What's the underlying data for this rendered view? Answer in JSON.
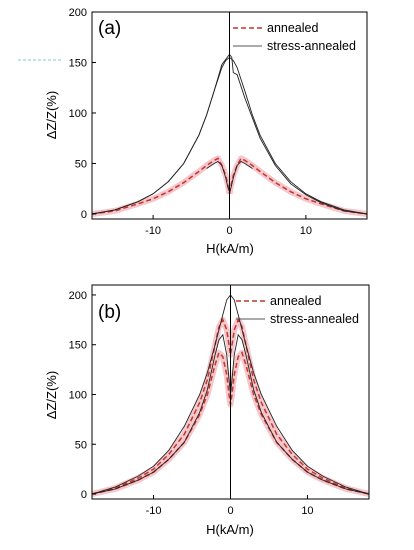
{
  "colors": {
    "annealed": "#c0392b",
    "annealed_glow": "#f6c6cc",
    "stress_annealed": "#222222",
    "axis": "#000000",
    "mark_line": "#9ad3f0"
  },
  "chart_data": [
    {
      "type": "line",
      "panel_label": "(a)",
      "xlabel": "H(kA/m)",
      "ylabel": "ΔZ/Z(%)",
      "xlim": [
        -18,
        18
      ],
      "ylim": [
        -5,
        200
      ],
      "xticks": [
        -10,
        0,
        10
      ],
      "xtick_labels": [
        "-10",
        "0",
        "10"
      ],
      "yticks": [
        0,
        50,
        100,
        150,
        200
      ],
      "ytick_labels": [
        "0",
        "50",
        "100",
        "150",
        "200"
      ],
      "grid": false,
      "legend_position": "top-right",
      "series": [
        {
          "name": "annealed",
          "style": "dashed",
          "curves": [
            {
              "x": [
                -18,
                -15,
                -12,
                -10,
                -8,
                -6,
                -4,
                -3,
                -2,
                -1.5,
                -1,
                -0.5,
                -0.2,
                0
              ],
              "y": [
                0,
                3,
                10,
                15,
                22,
                31,
                42,
                48,
                53,
                55,
                48,
                38,
                28,
                20
              ]
            },
            {
              "x": [
                0,
                0.2,
                0.5,
                1,
                1.5,
                2,
                3,
                4,
                6,
                8,
                10,
                12,
                15,
                18
              ],
              "y": [
                20,
                28,
                38,
                48,
                55,
                53,
                48,
                42,
                31,
                22,
                15,
                10,
                3,
                0
              ]
            }
          ]
        },
        {
          "name": "stress-annealed",
          "style": "solid",
          "curves": [
            {
              "x": [
                -18,
                -15,
                -12,
                -10,
                -8,
                -6,
                -4,
                -3,
                -2,
                -1,
                -0.5,
                0,
                0.5,
                1,
                2,
                3,
                4,
                6,
                8,
                10,
                12,
                15,
                18
              ],
              "y": [
                0,
                4,
                12,
                20,
                32,
                50,
                78,
                98,
                122,
                145,
                152,
                155,
                152,
                145,
                122,
                98,
                78,
                50,
                32,
                20,
                12,
                4,
                0
              ]
            },
            {
              "x": [
                -18,
                -15,
                -12,
                -10,
                -8,
                -6,
                -4,
                -3,
                -2,
                -1,
                -0.3,
                0,
                0.3,
                0.5,
                1,
                2,
                3,
                4,
                6,
                8,
                10,
                12,
                15,
                18
              ],
              "y": [
                0,
                4,
                12,
                20,
                32,
                50,
                78,
                98,
                122,
                148,
                155,
                158,
                155,
                140,
                138,
                115,
                95,
                75,
                48,
                30,
                19,
                11,
                3,
                0
              ]
            },
            {
              "x": [
                -3,
                -2,
                -1.5,
                -1,
                -0.5,
                -0.2,
                0,
                0.2,
                0.5,
                1,
                1.5,
                2,
                3
              ],
              "y": [
                45,
                50,
                52,
                48,
                36,
                26,
                22,
                26,
                36,
                48,
                52,
                50,
                45
              ]
            }
          ]
        }
      ]
    },
    {
      "type": "line",
      "panel_label": "(b)",
      "xlabel": "H(kA/m)",
      "ylabel": "ΔZ/Z(%)",
      "xlim": [
        -18,
        18
      ],
      "ylim": [
        -5,
        210
      ],
      "xticks": [
        -10,
        0,
        10
      ],
      "xtick_labels": [
        "-10",
        "0",
        "10"
      ],
      "yticks": [
        0,
        50,
        100,
        150,
        200
      ],
      "ytick_labels": [
        "0",
        "50",
        "100",
        "150",
        "200"
      ],
      "grid": false,
      "legend_position": "top-right",
      "series": [
        {
          "name": "annealed",
          "style": "dashed",
          "curves": [
            {
              "x": [
                -18,
                -15,
                -12,
                -10,
                -8,
                -6,
                -4,
                -3,
                -2,
                -1.5,
                -1,
                -0.5,
                -0.2,
                0,
                0.2,
                0.5,
                1,
                1.5,
                2,
                3,
                4,
                6,
                8,
                10,
                12,
                15,
                18
              ],
              "y": [
                0,
                5,
                14,
                22,
                35,
                52,
                80,
                100,
                130,
                142,
                138,
                120,
                100,
                90,
                100,
                120,
                138,
                142,
                130,
                100,
                80,
                52,
                35,
                22,
                14,
                5,
                0
              ]
            },
            {
              "x": [
                -18,
                -15,
                -12,
                -10,
                -8,
                -6,
                -4,
                -3,
                -2,
                -1.5,
                -1,
                -0.5,
                -0.2,
                0,
                0.2,
                0.5,
                1,
                1.5,
                2,
                3,
                4,
                6,
                8,
                10,
                12,
                15,
                18
              ],
              "y": [
                0,
                6,
                16,
                25,
                40,
                60,
                92,
                115,
                150,
                168,
                175,
                165,
                150,
                140,
                150,
                165,
                175,
                168,
                150,
                115,
                92,
                60,
                40,
                25,
                16,
                6,
                0
              ]
            }
          ]
        },
        {
          "name": "stress-annealed",
          "style": "solid",
          "curves": [
            {
              "x": [
                -18,
                -15,
                -12,
                -10,
                -8,
                -6,
                -4,
                -3,
                -2,
                -1,
                -0.5,
                0,
                0.5,
                1,
                2,
                3,
                4,
                6,
                8,
                10,
                12,
                15,
                18
              ],
              "y": [
                0,
                7,
                18,
                28,
                44,
                68,
                100,
                122,
                150,
                180,
                195,
                200,
                195,
                180,
                150,
                122,
                100,
                68,
                44,
                28,
                18,
                7,
                0
              ]
            },
            {
              "x": [
                -18,
                -15,
                -12,
                -10,
                -8,
                -6,
                -4,
                -3,
                -2,
                -1.5,
                -1,
                -0.5,
                -0.2,
                0,
                0.2,
                0.5,
                1,
                1.5,
                2,
                3,
                4,
                6,
                8,
                10,
                12,
                15,
                18
              ],
              "y": [
                0,
                5,
                14,
                22,
                35,
                52,
                82,
                105,
                140,
                155,
                160,
                140,
                115,
                100,
                115,
                140,
                160,
                155,
                140,
                105,
                82,
                52,
                35,
                22,
                14,
                5,
                0
              ]
            }
          ]
        }
      ]
    }
  ]
}
